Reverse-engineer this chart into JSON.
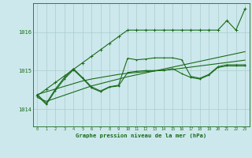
{
  "background_color": "#cce8ec",
  "grid_color": "#aacccc",
  "line_color": "#1a6b1a",
  "title": "Graphe pression niveau de la mer (hPa)",
  "yticks": [
    1014,
    1015,
    1016
  ],
  "ylim": [
    1013.55,
    1016.75
  ],
  "xlim": [
    -0.5,
    23.5
  ],
  "series_trend1": [
    1014.38,
    1014.45,
    1014.52,
    1014.59,
    1014.66,
    1014.73,
    1014.78,
    1014.82,
    1014.86,
    1014.9,
    1014.93,
    1014.95,
    1014.97,
    1014.99,
    1015.01,
    1015.03,
    1015.06,
    1015.09,
    1015.12,
    1015.15,
    1015.18,
    1015.21,
    1015.24,
    1015.27
  ],
  "series_trend2": [
    1014.3,
    1014.2,
    1014.28,
    1014.36,
    1014.44,
    1014.52,
    1014.6,
    1014.66,
    1014.72,
    1014.78,
    1014.84,
    1014.89,
    1014.94,
    1014.99,
    1015.04,
    1015.09,
    1015.14,
    1015.19,
    1015.24,
    1015.29,
    1015.34,
    1015.39,
    1015.44,
    1015.49
  ],
  "series_jagged": [
    1014.38,
    1014.15,
    1014.52,
    1014.82,
    1015.05,
    1014.82,
    1014.58,
    1014.47,
    1014.58,
    1014.62,
    1015.32,
    1015.28,
    1015.3,
    1015.33,
    1015.33,
    1015.33,
    1015.28,
    1014.85,
    1014.8,
    1014.9,
    1015.1,
    1015.15,
    1015.15,
    1015.15
  ],
  "series_smooth": [
    1014.35,
    1014.12,
    1014.48,
    1014.78,
    1015.02,
    1014.8,
    1014.55,
    1014.45,
    1014.57,
    1014.6,
    1014.95,
    1014.98,
    1015.0,
    1015.0,
    1015.0,
    1015.05,
    1014.92,
    1014.82,
    1014.78,
    1014.88,
    1015.08,
    1015.12,
    1015.12,
    1015.12
  ],
  "series_spike": [
    1014.35,
    1014.52,
    1014.69,
    1014.86,
    1015.03,
    1015.2,
    1015.37,
    1015.54,
    1015.71,
    1015.88,
    1016.05,
    1016.05,
    1016.05,
    1016.05,
    1016.05,
    1016.05,
    1016.05,
    1016.05,
    1016.05,
    1016.05,
    1016.05,
    1016.3,
    1016.05,
    1016.6
  ],
  "lw": 0.8,
  "ms": 2.0
}
